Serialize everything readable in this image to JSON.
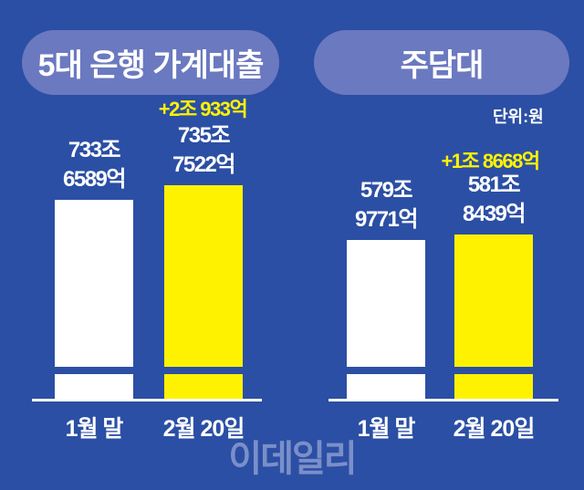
{
  "chart_data": [
    {
      "type": "bar",
      "title": "5대 은행 가계대출",
      "categories": [
        "1월 말",
        "2월 20일"
      ],
      "values": [
        733.6589,
        735.7522
      ],
      "value_labels": [
        [
          "733조",
          "6589억"
        ],
        [
          "735조",
          "7522억"
        ]
      ],
      "annotation": "+2조 933억",
      "unit": "조원",
      "axis_broken": true,
      "colors": [
        "#ffffff",
        "#fff200"
      ]
    },
    {
      "type": "bar",
      "title": "주담대",
      "categories": [
        "1월 말",
        "2월 20일"
      ],
      "values": [
        579.9771,
        581.8439
      ],
      "value_labels": [
        [
          "579조",
          "9771억"
        ],
        [
          "581조",
          "8439억"
        ]
      ],
      "annotation": "+1조 8668억",
      "unit": "조원",
      "axis_broken": true,
      "colors": [
        "#ffffff",
        "#fff200"
      ]
    }
  ],
  "unit_label": "단위:원",
  "watermark": "이데일리"
}
